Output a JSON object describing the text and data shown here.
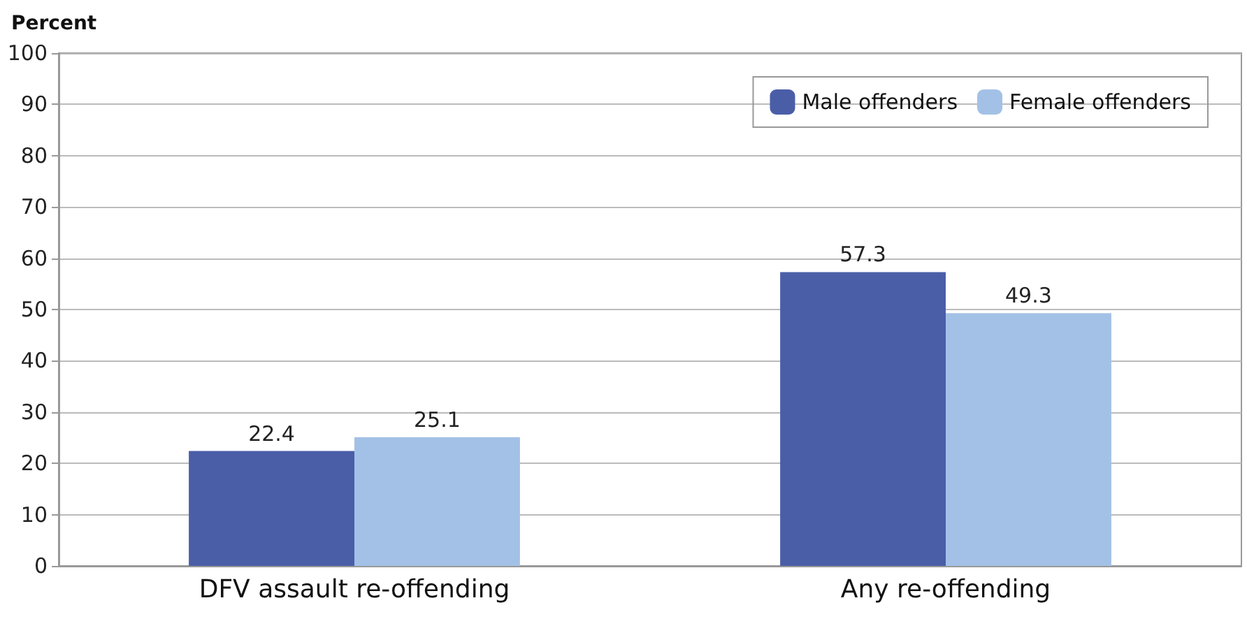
{
  "chart_data": {
    "type": "bar",
    "ylabel": "Percent",
    "categories": [
      "DFV assault re-offending",
      "Any re-offending"
    ],
    "series": [
      {
        "name": "Male offenders",
        "color": "#4a5ea8",
        "values": [
          22.4,
          57.3
        ]
      },
      {
        "name": "Female offenders",
        "color": "#a3c1e6",
        "values": [
          25.1,
          49.3
        ]
      }
    ],
    "ylim": [
      0,
      100
    ],
    "yticks": [
      0,
      10,
      20,
      30,
      40,
      50,
      60,
      70,
      80,
      90,
      100
    ],
    "grid": "y",
    "legend": "top right",
    "data_labels": true
  }
}
